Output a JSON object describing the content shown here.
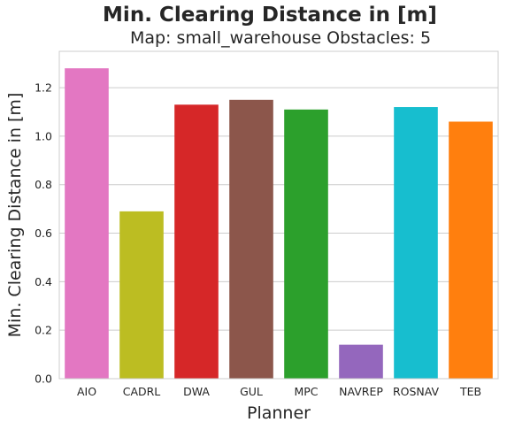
{
  "chart_data": {
    "type": "bar",
    "title": "Min. Clearing Distance in [m]",
    "subtitle": "Map: small_warehouse Obstacles: 5",
    "xlabel": "Planner",
    "ylabel": "Min. Clearing Distance in [m]",
    "categories": [
      "AIO",
      "CADRL",
      "DWA",
      "GUL",
      "MPC",
      "NAVREP",
      "ROSNAV",
      "TEB"
    ],
    "values": [
      1.28,
      0.69,
      1.13,
      1.15,
      1.11,
      0.14,
      1.12,
      1.06
    ],
    "colors": [
      "#e377c2",
      "#bcbd22",
      "#d62728",
      "#8c564b",
      "#2ca02c",
      "#9467bd",
      "#17becf",
      "#ff7f0e"
    ],
    "ylim": [
      0,
      1.35
    ],
    "yticks": [
      "0.0",
      "0.2",
      "0.4",
      "0.6",
      "0.8",
      "1.0",
      "1.2"
    ],
    "grid": true,
    "background": "#ffffff",
    "grid_color": "#cccccc"
  }
}
